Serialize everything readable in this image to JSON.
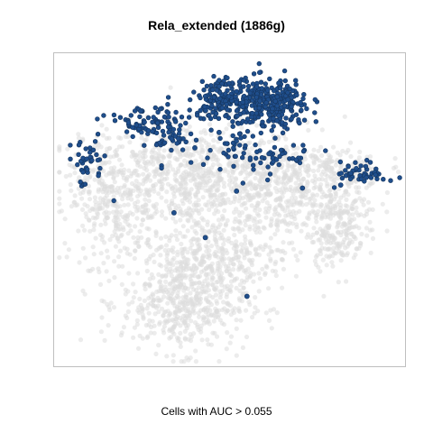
{
  "chart_data": {
    "type": "scatter",
    "title": "Rela_extended (1886g)",
    "caption": "Cells with AUC > 0.055",
    "xlabel": "",
    "ylabel": "",
    "grid": false,
    "axes_ticks": false,
    "xlim": [
      0,
      100
    ],
    "ylim": [
      0,
      100
    ],
    "series": [
      {
        "role": "cells-below-threshold",
        "color": "#dcdcdc",
        "clusters": [
          {
            "cx": 40,
            "cy": 60,
            "sx": 16,
            "sy": 9,
            "n": 900
          },
          {
            "cx": 16,
            "cy": 52,
            "sx": 6,
            "sy": 10,
            "n": 260
          },
          {
            "cx": 37,
            "cy": 20,
            "sx": 9,
            "sy": 8,
            "n": 520
          },
          {
            "cx": 46,
            "cy": 35,
            "sx": 11,
            "sy": 6,
            "n": 320
          },
          {
            "cx": 64,
            "cy": 54,
            "sx": 8,
            "sy": 8,
            "n": 260
          },
          {
            "cx": 81,
            "cy": 55,
            "sx": 6,
            "sy": 7,
            "n": 160
          },
          {
            "cx": 81,
            "cy": 42,
            "sx": 4,
            "sy": 5,
            "n": 150
          },
          {
            "cx": 78,
            "cy": 64,
            "sx": 8,
            "sy": 3,
            "n": 120
          }
        ]
      },
      {
        "role": "cells-above-threshold",
        "color": "#1f4e8c",
        "clusters": [
          {
            "cx": 61,
            "cy": 84,
            "sx": 6,
            "sy": 4,
            "n": 330
          },
          {
            "cx": 47,
            "cy": 86,
            "sx": 3,
            "sy": 2.8,
            "n": 120
          },
          {
            "cx": 27,
            "cy": 78,
            "sx": 6.5,
            "sy": 3,
            "n": 90
          },
          {
            "cx": 9,
            "cy": 65,
            "sx": 3,
            "sy": 4,
            "n": 40
          },
          {
            "cx": 88,
            "cy": 62,
            "sx": 3.5,
            "sy": 1.8,
            "n": 50
          },
          {
            "cx": 58,
            "cy": 67,
            "sx": 10,
            "sy": 3,
            "n": 70
          },
          {
            "cx": 34,
            "cy": 73,
            "sx": 2.5,
            "sy": 2,
            "n": 25
          },
          {
            "cx": 53,
            "cy": 72,
            "sx": 2,
            "sy": 1.5,
            "n": 10
          }
        ],
        "singles": [
          [
            34,
            49
          ],
          [
            43,
            41
          ],
          [
            55,
            22
          ],
          [
            52,
            56
          ],
          [
            40,
            70
          ],
          [
            71,
            57
          ],
          [
            82,
            58
          ],
          [
            47,
            75
          ]
        ]
      }
    ]
  }
}
